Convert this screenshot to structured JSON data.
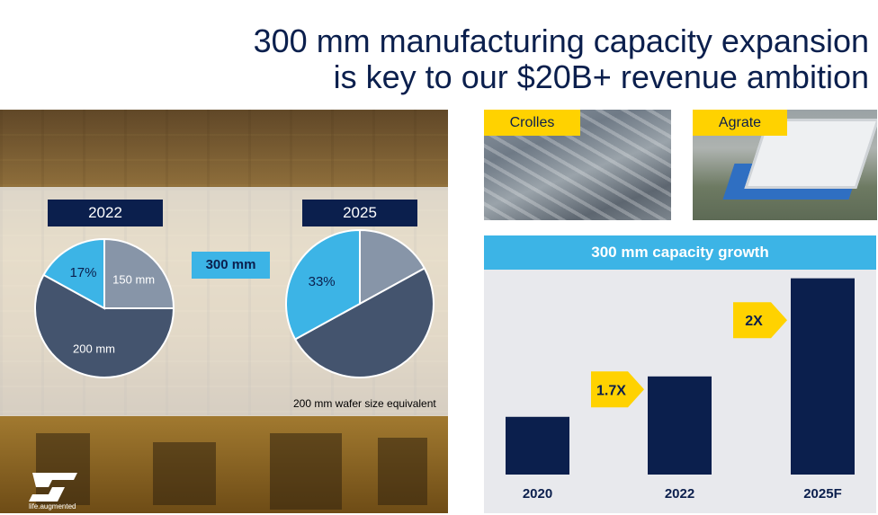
{
  "title": {
    "line1": "300 mm manufacturing capacity expansion",
    "line2": "is key to our $20B+ revenue ambition"
  },
  "pies": {
    "tag_300": "300 mm",
    "note": "200 mm wafer size equivalent",
    "left_year": "2022",
    "right_year": "2025"
  },
  "sites": {
    "crolles": "Crolles",
    "agrate": "Agrate"
  },
  "brand": {
    "tagline": "life.augmented"
  },
  "colors": {
    "navy": "#0b1f4d",
    "cyan": "#3cb4e6",
    "yellow": "#ffd200",
    "slate": "#44546e",
    "grey": "#8795a8"
  },
  "chart_data": [
    {
      "type": "pie",
      "title": "2022",
      "slices": [
        {
          "label": "150 mm",
          "value": 25,
          "color": "#8795a8"
        },
        {
          "label": "200 mm",
          "value": 58,
          "color": "#44546e"
        },
        {
          "label": "17%",
          "value": 17,
          "color": "#3cb4e6"
        }
      ]
    },
    {
      "type": "pie",
      "title": "2025",
      "slices": [
        {
          "label": "",
          "value": 17,
          "color": "#8795a8"
        },
        {
          "label": "",
          "value": 50,
          "color": "#44546e"
        },
        {
          "label": "33%",
          "value": 33,
          "color": "#3cb4e6"
        }
      ]
    },
    {
      "type": "bar",
      "title": "300 mm capacity growth",
      "categories": [
        "2020",
        "2022",
        "2025F"
      ],
      "values": [
        1,
        1.7,
        3.4
      ],
      "ylim": [
        0,
        3.55
      ],
      "annotations": [
        {
          "label": "1.7X",
          "between": [
            "2020",
            "2022"
          ]
        },
        {
          "label": "2X",
          "between": [
            "2022",
            "2025F"
          ]
        }
      ]
    }
  ]
}
